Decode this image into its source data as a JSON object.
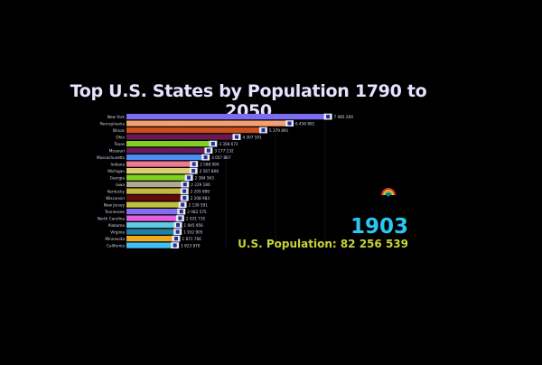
{
  "chart_data": {
    "type": "bar",
    "orientation": "horizontal",
    "title": "Top U.S. States by Population 1790 to 2050",
    "year": "1903",
    "total_label": "U.S. Population: 82 256 539",
    "categories": [
      "New York",
      "Pennsylvania",
      "Illinois",
      "Ohio",
      "Texas",
      "Missouri",
      "Massachusetts",
      "Indiana",
      "Michigan",
      "Georgia",
      "Iowa",
      "Kentucky",
      "Wisconsin",
      "New Jersey",
      "Tennessee",
      "North Carolina",
      "Alabama",
      "Virginia",
      "Minnesota",
      "California"
    ],
    "values": [
      7985269,
      6436891,
      5379891,
      4307591,
      3358672,
      3177132,
      3057867,
      2588990,
      2567808,
      2384563,
      2229180,
      2205899,
      2208983,
      2130591,
      2082575,
      2031735,
      1945956,
      1932905,
      1871766,
      1823870
    ],
    "value_labels": [
      "7 985 269",
      "6 436 891",
      "5 379 891",
      "4 307 591",
      "3 358 672",
      "3 177 132",
      "3 057 867",
      "2 588 990",
      "2 567 808",
      "2 384 563",
      "2 229 180",
      "2 205 899",
      "2 208 983",
      "2 130 591",
      "2 082 575",
      "2 031 735",
      "1 945 956",
      "1 932 905",
      "1 871 766",
      "1 823 870"
    ],
    "colors": [
      "#7b6cf2",
      "#f5a070",
      "#c8501e",
      "#6a1a50",
      "#80d020",
      "#6a1a60",
      "#4a90f0",
      "#f07890",
      "#d8d070",
      "#80d020",
      "#b0a890",
      "#c0b840",
      "#600a10",
      "#c0c040",
      "#8070f0",
      "#e060e0",
      "#60c8e0",
      "#2080a0",
      "#f0a820",
      "#40c0f0"
    ],
    "grid": true,
    "legend": "none"
  }
}
